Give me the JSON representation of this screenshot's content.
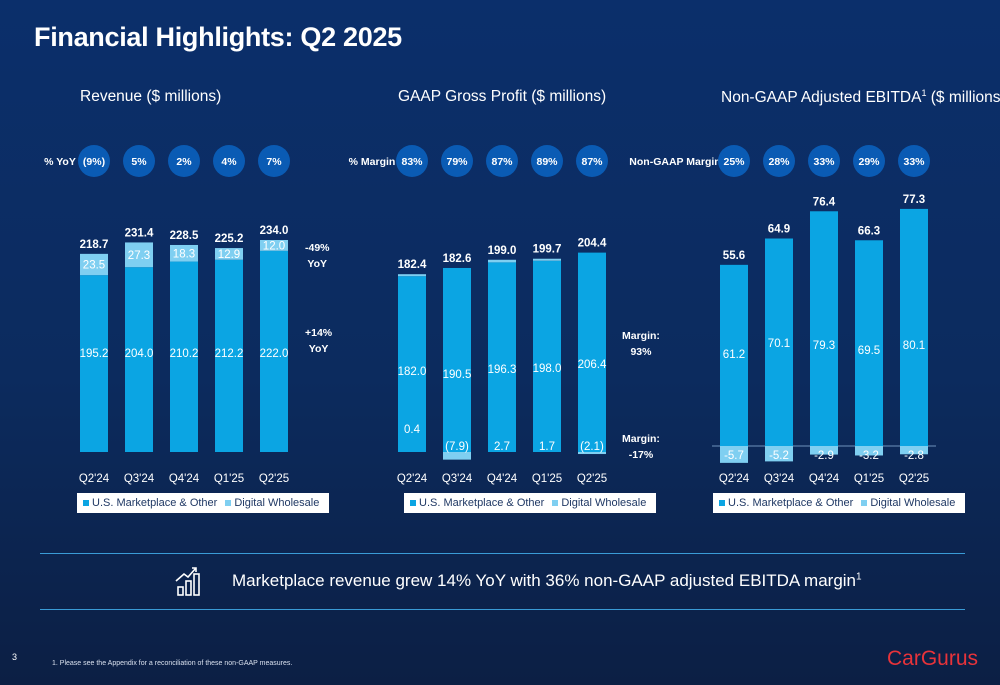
{
  "page_title": "Financial Highlights: Q2 2025",
  "colors": {
    "primary_bar": "#0ba5e3",
    "secondary_bar": "#7fcff1",
    "pill": "#0a5bb4",
    "brand_red": "#e8333a"
  },
  "chart_data": [
    {
      "type": "bar",
      "title": "Revenue ($ millions)",
      "row_label": "% YoY",
      "row_values": [
        "(9%)",
        "5%",
        "2%",
        "4%",
        "7%"
      ],
      "categories": [
        "Q2'24",
        "Q3'24",
        "Q4'24",
        "Q1'25",
        "Q2'25"
      ],
      "series": [
        {
          "name": "U.S. Marketplace & Other",
          "values": [
            195.2,
            204.0,
            210.2,
            212.2,
            222.0
          ],
          "labels": [
            "195.2",
            "204.0",
            "210.2",
            "212.2",
            "222.0"
          ]
        },
        {
          "name": "Digital Wholesale",
          "values": [
            23.5,
            27.3,
            18.3,
            12.9,
            12.0
          ],
          "labels": [
            "23.5",
            "27.3",
            "18.3",
            "12.9",
            "12.0"
          ]
        }
      ],
      "totals": [
        "218.7",
        "231.4",
        "228.5",
        "225.2",
        "234.0"
      ],
      "side_notes": [
        "-49%\nYoY",
        "+14%\nYoY"
      ]
    },
    {
      "type": "bar",
      "title": "GAAP Gross Profit ($ millions)",
      "row_label": "% Margin",
      "row_values": [
        "83%",
        "79%",
        "87%",
        "89%",
        "87%"
      ],
      "categories": [
        "Q2'24",
        "Q3'24",
        "Q4'24",
        "Q1'25",
        "Q2'25"
      ],
      "series": [
        {
          "name": "U.S. Marketplace & Other",
          "values": [
            182.0,
            190.5,
            196.3,
            198.0,
            206.4
          ],
          "labels": [
            "182.0",
            "190.5",
            "196.3",
            "198.0",
            "206.4"
          ]
        },
        {
          "name": "Digital Wholesale",
          "values": [
            0.4,
            -7.9,
            2.7,
            1.7,
            -2.1
          ],
          "labels": [
            "0.4",
            "(7.9)",
            "2.7",
            "1.7",
            "(2.1)"
          ]
        }
      ],
      "totals": [
        "182.4",
        "182.6",
        "199.0",
        "199.7",
        "204.4"
      ],
      "side_notes": [
        "Margin:\n93%",
        "Margin:\n-17%"
      ]
    },
    {
      "type": "bar",
      "title": "Non-GAAP Adjusted EBITDA",
      "title_sup": "1",
      "title_suffix": " ($ millions)",
      "row_label": "Non-GAAP Margin",
      "row_values": [
        "25%",
        "28%",
        "33%",
        "29%",
        "33%"
      ],
      "categories": [
        "Q2'24",
        "Q3'24",
        "Q4'24",
        "Q1'25",
        "Q2'25"
      ],
      "series": [
        {
          "name": "U.S. Marketplace & Other",
          "values": [
            61.2,
            70.1,
            79.3,
            69.5,
            80.1
          ],
          "labels": [
            "61.2",
            "70.1",
            "79.3",
            "69.5",
            "80.1"
          ]
        },
        {
          "name": "Digital Wholesale",
          "values": [
            -5.7,
            -5.2,
            -2.9,
            -3.2,
            -2.8
          ],
          "labels": [
            "-5.7",
            "-5.2",
            "-2.9",
            "-3.2",
            "-2.8"
          ]
        }
      ],
      "totals": [
        "55.6",
        "64.9",
        "76.4",
        "66.3",
        "77.3"
      ],
      "side_notes": []
    }
  ],
  "callout": {
    "text": "Marketplace revenue grew 14% YoY with 36% non-GAAP adjusted EBITDA margin",
    "sup": "1"
  },
  "footer": {
    "page_number": "3",
    "footnote": "1.    Please see the Appendix for a reconciliation of these non-GAAP measures.",
    "logo": "CarGurus"
  }
}
